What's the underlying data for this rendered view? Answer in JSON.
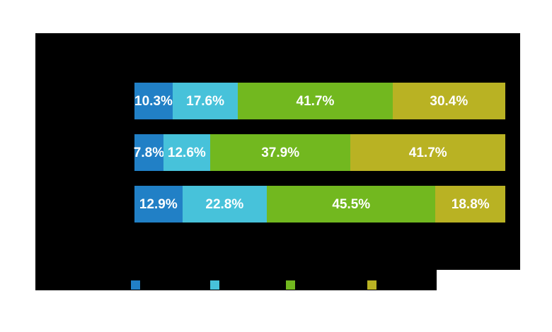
{
  "canvas": {
    "page_background": "#ffffff",
    "chart_background": "#000000"
  },
  "chart_data": {
    "type": "bar",
    "orientation": "horizontal",
    "stacked": true,
    "grid": false,
    "legend_position": "bottom",
    "xlim": [
      0,
      100
    ],
    "categories": [
      "",
      "",
      ""
    ],
    "series": [
      {
        "name": "",
        "color": "#2180C6",
        "values": [
          10.3,
          7.8,
          12.9
        ]
      },
      {
        "name": "",
        "color": "#47C2DA",
        "values": [
          17.6,
          12.6,
          22.8
        ]
      },
      {
        "name": "",
        "color": "#72B81F",
        "values": [
          41.7,
          37.9,
          45.5
        ]
      },
      {
        "name": "",
        "color": "#B9B223",
        "values": [
          30.4,
          41.7,
          18.8
        ]
      }
    ],
    "data_labels": [
      [
        "10.3%",
        "17.6%",
        "41.7%",
        "30.4%"
      ],
      [
        "7.8%",
        "12.6%",
        "37.9%",
        "41.7%"
      ],
      [
        "12.9%",
        "22.8%",
        "45.5%",
        "18.8%"
      ]
    ],
    "data_label_color": "#ffffff"
  },
  "legend": {
    "swatch_colors": [
      "#2180C6",
      "#47C2DA",
      "#72B81F",
      "#B9B223"
    ]
  }
}
